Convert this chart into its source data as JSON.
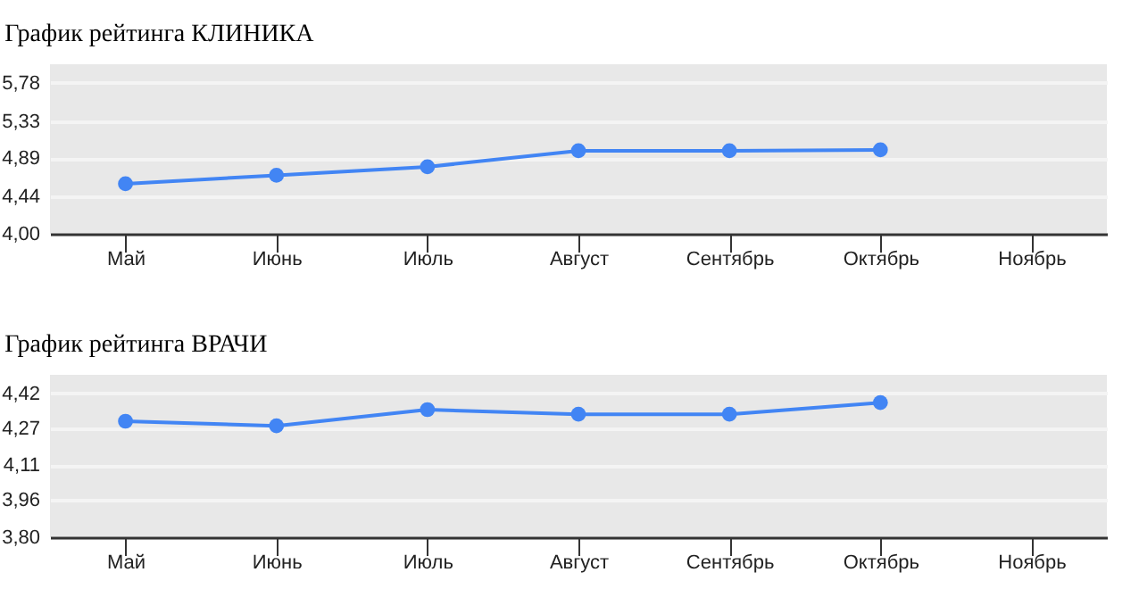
{
  "chart_data": [
    {
      "type": "line",
      "title": "График рейтинга КЛИНИКА",
      "categories": [
        "Май",
        "Июнь",
        "Июль",
        "Август",
        "Сентябрь",
        "Октябрь",
        "Ноябрь"
      ],
      "series": [
        {
          "color": "#4285f4",
          "values": [
            4.59,
            4.69,
            4.79,
            4.98,
            4.98,
            4.99,
            null
          ]
        }
      ],
      "ylim": [
        4,
        6
      ],
      "yticks": [
        {
          "value": 4,
          "label": "4,00"
        },
        {
          "value": 4.44,
          "label": "4,44"
        },
        {
          "value": 4.89,
          "label": "4,89"
        },
        {
          "value": 5.33,
          "label": "5,33"
        },
        {
          "value": 5.78,
          "label": "5,78"
        }
      ],
      "grid": "y",
      "marker": "circle",
      "legend": false
    },
    {
      "type": "line",
      "title": "График рейтинга ВРАЧИ",
      "categories": [
        "Май",
        "Июнь",
        "Июль",
        "Август",
        "Сентябрь",
        "Октябрь",
        "Ноябрь"
      ],
      "series": [
        {
          "color": "#4285f4",
          "values": [
            4.3,
            4.28,
            4.35,
            4.33,
            4.33,
            4.38,
            null
          ]
        }
      ],
      "ylim": [
        3.8,
        4.5
      ],
      "yticks": [
        {
          "value": 3.8,
          "label": "3,80"
        },
        {
          "value": 3.96,
          "label": "3,96"
        },
        {
          "value": 4.11,
          "label": "4,11"
        },
        {
          "value": 4.27,
          "label": "4,27"
        },
        {
          "value": 4.42,
          "label": "4,42"
        }
      ],
      "grid": "y",
      "marker": "circle",
      "legend": false
    }
  ]
}
